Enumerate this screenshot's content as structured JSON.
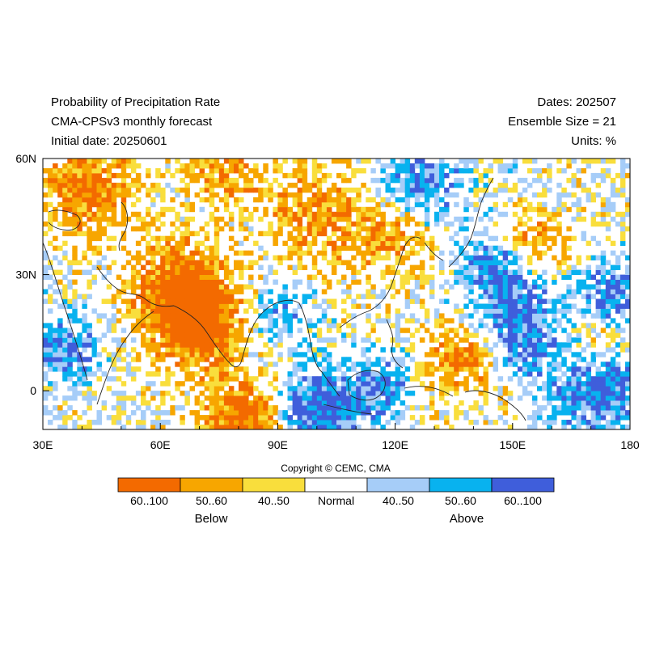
{
  "header": {
    "title": "Probability of Precipitation Rate",
    "subtitle": "CMA-CPSv3 monthly forecast",
    "initial_date": "Initial date: 20250601",
    "dates": "Dates: 202507",
    "ensemble": "Ensemble Size = 21",
    "units": "Units: %"
  },
  "axes": {
    "x_ticks": [
      "30E",
      "60E",
      "90E",
      "120E",
      "150E",
      "180"
    ],
    "y_ticks": [
      "60N",
      "30N",
      "0"
    ],
    "x_range_deg": [
      30,
      180
    ],
    "y_range_deg": [
      -10,
      60
    ]
  },
  "copyright": "Copyright © CEMC, CMA",
  "legend": {
    "bins": [
      {
        "label": "60..100",
        "color": "#f36a00"
      },
      {
        "label": "50..60",
        "color": "#f7a600"
      },
      {
        "label": "40..50",
        "color": "#f9de3c"
      },
      {
        "label": "Normal",
        "color": "#ffffff"
      },
      {
        "label": "40..50",
        "color": "#a6cdf8"
      },
      {
        "label": "50..60",
        "color": "#08b2ef"
      },
      {
        "label": "60..100",
        "color": "#3f5edb"
      }
    ],
    "below_label": "Below",
    "above_label": "Above"
  },
  "colors": {
    "below_strong": "#f36a00",
    "below_mid": "#f7a600",
    "below_weak": "#f9de3c",
    "above_weak": "#a6cdf8",
    "above_mid": "#08b2ef",
    "above_strong": "#3f5edb",
    "coastline": "#222222"
  }
}
